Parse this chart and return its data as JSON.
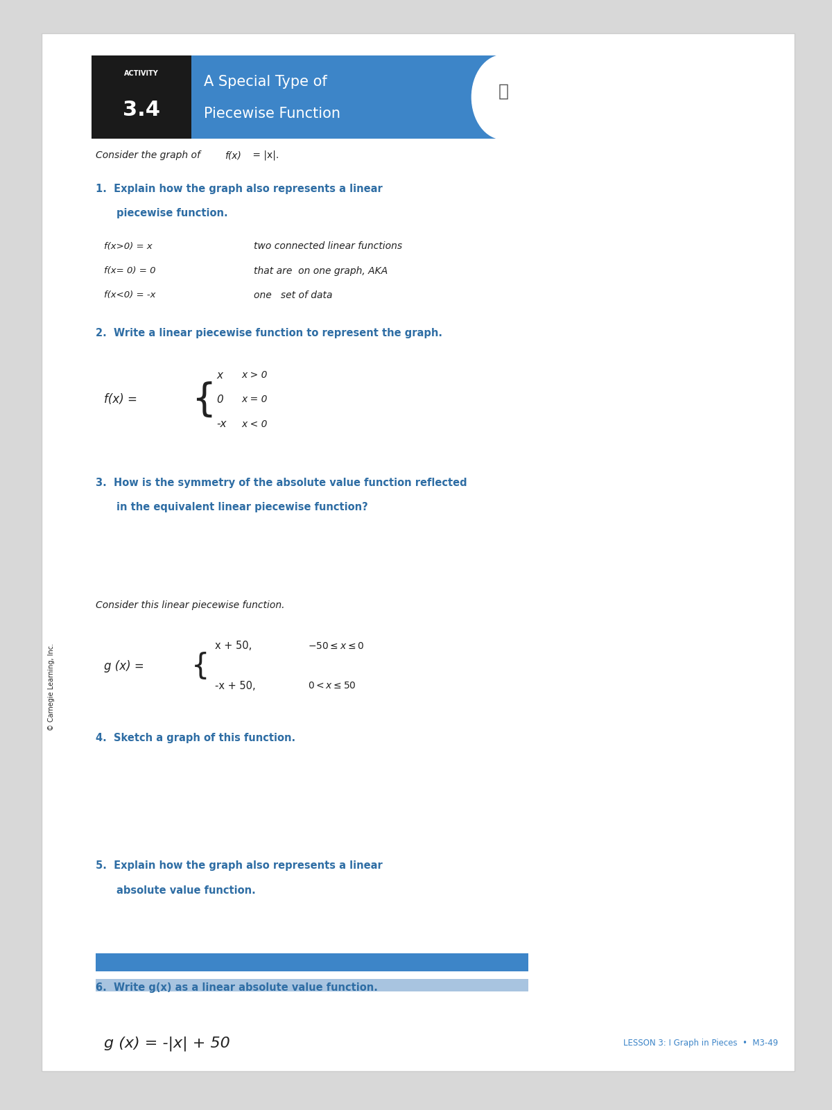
{
  "page_bg": "#d8d8d8",
  "card_bg": "#ffffff",
  "header_black_bg": "#1a1a1a",
  "header_blue_bg": "#3d85c8",
  "header_activity_text": "ACTIVITY",
  "header_number_text": "3.4",
  "header_title_line1": "A Special Type of",
  "header_title_line2": "Piecewise Function",
  "blue_color": "#3d85c8",
  "question_color": "#2e6da4",
  "body_text_color": "#222222",
  "red_color": "#cc0000",
  "footer_lesson_color": "#3d85c8",
  "footer_text": "LESSON 3: I Graph in Pieces  •  M3-49",
  "sidebar_text": "© Carnegie Learning, Inc.",
  "bar1_color": "#3d85c8",
  "bar2_color": "#a8c4e0"
}
